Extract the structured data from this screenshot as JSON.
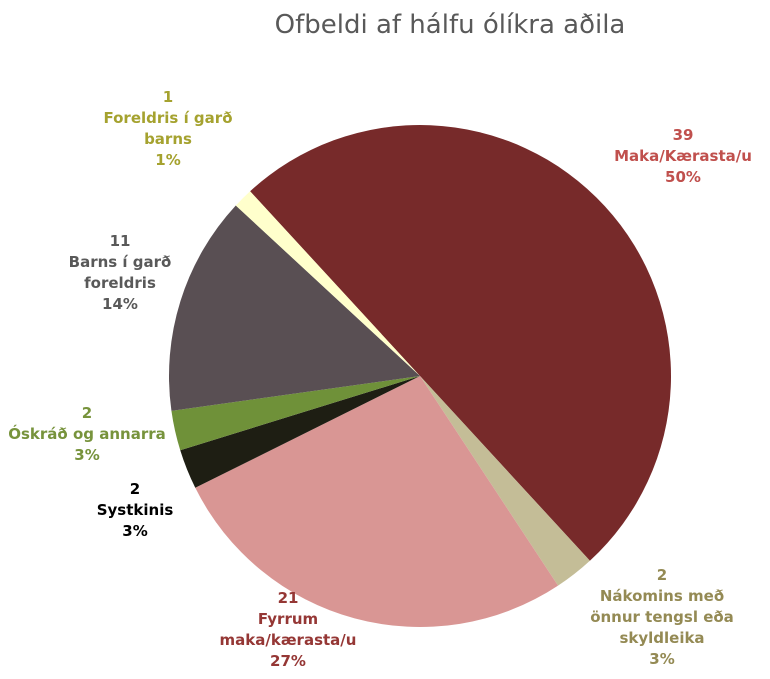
{
  "chart_data": {
    "type": "pie",
    "title": "Ofbeldi af hálfu ólíkra aðila",
    "categories": [
      "Maka/Kærasta/u",
      "Nákomins með önnur tengsl eða skyldleika",
      "Fyrrum maka/kærasta/u",
      "Systkinis",
      "Óskráð og annarra",
      "Barns í garð foreldris",
      "Foreldris í garð barns"
    ],
    "values": [
      39,
      2,
      21,
      2,
      2,
      11,
      1
    ],
    "percent_labels": [
      "50%",
      "3%",
      "27%",
      "3%",
      "3%",
      "14%",
      "1%"
    ],
    "colors": [
      "#772a2a",
      "#c4bd97",
      "#d99694",
      "#1e1e13",
      "#6f9139",
      "#594f53",
      "#ffffcc"
    ],
    "label_colors": [
      "#c0504d",
      "#948a54",
      "#953735",
      "#000000",
      "#77933c",
      "#595959",
      "#a5a22f"
    ]
  }
}
